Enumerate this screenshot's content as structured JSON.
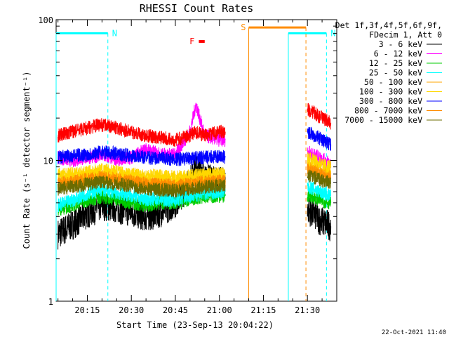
{
  "chart_data": {
    "type": "line",
    "title": "RHESSI Count Rates",
    "xlabel": "Start Time (23-Sep-13 20:04:22)",
    "ylabel": "Count Rate (s⁻¹ detector segment⁻¹)",
    "y_scale": "log",
    "ylim": [
      1,
      100
    ],
    "y_ticks": [
      "1",
      "10",
      "100"
    ],
    "xlim": [
      "20:04:22",
      "21:40:00"
    ],
    "x_ticks": [
      "20:15",
      "20:30",
      "20:45",
      "21:00",
      "21:15",
      "21:30"
    ],
    "footer": "22-Oct-2021 11:40",
    "legend": {
      "header": [
        "Det 1f,3f,4f,5f,6f,9f,",
        "FDecim 1, Att 0"
      ],
      "placement": "right"
    },
    "series": [
      {
        "name": "3 - 6 keV",
        "color": "#000000",
        "x": [
          "20:05",
          "20:10",
          "20:15",
          "20:20",
          "20:25",
          "20:30",
          "20:35",
          "20:40",
          "20:45",
          "20:50",
          "20:52",
          "20:55",
          "21:00",
          "21:02",
          "21:30",
          "21:32",
          "21:34",
          "21:36",
          "21:38"
        ],
        "y": [
          3.0,
          3.5,
          4.2,
          4.8,
          4.6,
          4.3,
          4.0,
          4.3,
          5.0,
          7.0,
          9.0,
          7.5,
          7.0,
          7.0,
          4.5,
          4.2,
          3.8,
          3.6,
          3.4
        ]
      },
      {
        "name": "6 - 12 keV",
        "color": "#ff00ff",
        "x": [
          "20:05",
          "20:10",
          "20:15",
          "20:20",
          "20:25",
          "20:30",
          "20:35",
          "20:40",
          "20:45",
          "20:50",
          "20:52",
          "20:55",
          "21:00",
          "21:02",
          "21:30",
          "21:32",
          "21:34",
          "21:36",
          "21:38"
        ],
        "y": [
          10.5,
          10.0,
          10.5,
          10.8,
          10.2,
          10.5,
          12.0,
          11.0,
          11.0,
          16.0,
          25.0,
          15.0,
          14.0,
          14.0,
          11.5,
          11.0,
          10.5,
          10.0,
          9.5
        ]
      },
      {
        "name": "12 - 25 keV",
        "color": "#00cc00",
        "x": [
          "20:05",
          "20:10",
          "20:15",
          "20:20",
          "20:25",
          "20:30",
          "20:35",
          "20:40",
          "20:45",
          "20:50",
          "20:52",
          "20:55",
          "21:00",
          "21:02",
          "21:30",
          "21:32",
          "21:34",
          "21:36",
          "21:38"
        ],
        "y": [
          4.5,
          4.8,
          5.2,
          5.5,
          5.3,
          5.0,
          4.8,
          5.0,
          5.0,
          5.3,
          5.4,
          5.5,
          5.6,
          5.6,
          5.6,
          5.5,
          5.3,
          5.1,
          5.0
        ]
      },
      {
        "name": "25 - 50 keV",
        "color": "#00ffff",
        "x": [
          "20:05",
          "20:10",
          "20:15",
          "20:20",
          "20:25",
          "20:30",
          "20:35",
          "20:40",
          "20:45",
          "20:50",
          "20:52",
          "20:55",
          "21:00",
          "21:02",
          "21:30",
          "21:32",
          "21:34",
          "21:36",
          "21:38"
        ],
        "y": [
          4.8,
          5.2,
          5.8,
          6.2,
          5.9,
          5.6,
          5.3,
          5.3,
          5.2,
          5.6,
          5.7,
          5.8,
          6.0,
          6.0,
          6.5,
          6.3,
          6.0,
          5.8,
          5.6
        ]
      },
      {
        "name": "50 - 100 keV",
        "color": "#ffa500",
        "x": [
          "20:05",
          "20:10",
          "20:15",
          "20:20",
          "20:25",
          "20:30",
          "20:35",
          "20:40",
          "20:45",
          "20:50",
          "20:52",
          "20:55",
          "21:00",
          "21:02",
          "21:30",
          "21:32",
          "21:34",
          "21:36",
          "21:38"
        ],
        "y": [
          7.0,
          7.2,
          7.5,
          7.8,
          7.5,
          7.3,
          7.0,
          6.9,
          6.8,
          7.0,
          7.1,
          7.2,
          7.3,
          7.3,
          9.2,
          8.9,
          8.6,
          8.3,
          8.0
        ]
      },
      {
        "name": "100 - 300 keV",
        "color": "#ffd700",
        "x": [
          "20:05",
          "20:10",
          "20:15",
          "20:20",
          "20:25",
          "20:30",
          "20:35",
          "20:40",
          "20:45",
          "20:50",
          "20:52",
          "20:55",
          "21:00",
          "21:02",
          "21:30",
          "21:32",
          "21:34",
          "21:36",
          "21:38"
        ],
        "y": [
          8.0,
          8.0,
          8.2,
          8.5,
          8.3,
          8.0,
          7.8,
          7.7,
          7.6,
          7.7,
          7.8,
          7.9,
          8.0,
          8.0,
          10.3,
          10.0,
          9.6,
          9.2,
          8.9
        ]
      },
      {
        "name": "300 - 800 keV",
        "color": "#0000ff",
        "x": [
          "20:05",
          "20:10",
          "20:15",
          "20:20",
          "20:25",
          "20:30",
          "20:35",
          "20:40",
          "20:45",
          "20:50",
          "20:52",
          "20:55",
          "21:00",
          "21:02",
          "21:30",
          "21:32",
          "21:34",
          "21:36",
          "21:38"
        ],
        "y": [
          10.5,
          10.8,
          11.0,
          11.5,
          11.2,
          10.8,
          10.5,
          10.3,
          10.2,
          10.3,
          10.4,
          10.5,
          10.6,
          10.6,
          16.0,
          15.2,
          14.4,
          13.6,
          13.0
        ]
      },
      {
        "name": "800 - 7000 keV",
        "color": "#ff8c00",
        "x": [
          "20:05",
          "20:10",
          "20:15",
          "20:20",
          "20:25",
          "20:30",
          "20:35",
          "20:40",
          "20:45",
          "20:50",
          "20:52",
          "20:55",
          "21:00",
          "21:02",
          "21:30",
          "21:32",
          "21:34",
          "21:36",
          "21:38"
        ],
        "y": [
          6.8,
          7.0,
          7.3,
          7.6,
          7.3,
          7.1,
          6.8,
          6.7,
          6.6,
          6.8,
          6.9,
          7.0,
          7.1,
          7.1,
          8.6,
          8.3,
          8.0,
          7.7,
          7.4
        ]
      },
      {
        "name": "7000 - 15000 keV",
        "color": "#6b6b00",
        "x": [
          "20:05",
          "20:10",
          "20:15",
          "20:20",
          "20:25",
          "20:30",
          "20:35",
          "20:40",
          "20:45",
          "20:50",
          "20:52",
          "20:55",
          "21:00",
          "21:02",
          "21:30",
          "21:32",
          "21:34",
          "21:36",
          "21:38"
        ],
        "y": [
          6.3,
          6.5,
          6.8,
          7.0,
          6.8,
          6.6,
          6.3,
          6.2,
          6.1,
          6.3,
          6.4,
          6.5,
          6.6,
          6.6,
          7.8,
          7.6,
          7.3,
          7.1,
          6.9
        ]
      },
      {
        "name": "",
        "color": "#ff0000",
        "x": [
          "20:05",
          "20:10",
          "20:15",
          "20:20",
          "20:25",
          "20:30",
          "20:35",
          "20:40",
          "20:45",
          "20:50",
          "20:52",
          "20:55",
          "21:00",
          "21:02",
          "21:30",
          "21:32",
          "21:34",
          "21:36",
          "21:38"
        ],
        "y": [
          15.0,
          16.0,
          17.0,
          18.0,
          17.0,
          16.0,
          15.0,
          14.5,
          14.0,
          15.0,
          16.0,
          15.0,
          16.0,
          16.0,
          23.0,
          22.0,
          20.5,
          19.5,
          18.5
        ]
      }
    ],
    "annotations": [
      {
        "label": "N",
        "color": "#00ffff",
        "y": 80,
        "x_start": "20:04:22",
        "x_end": "20:22:00",
        "solid_line_x": "20:04:22",
        "dashed_line_x": "20:22:00"
      },
      {
        "label": "N",
        "color": "#00ffff",
        "y": 80,
        "x_start": "21:23:30",
        "x_end": "21:36:30",
        "solid_line_x": "21:23:30",
        "dashed_line_x": "21:36:30"
      },
      {
        "label": "S",
        "color": "#ff8c00",
        "y": 88,
        "x_start": "21:10:00",
        "x_end": "21:29:30",
        "solid_line_x": "21:10:00",
        "dashed_line_x": "21:29:30"
      },
      {
        "label": "F",
        "color": "#ff0000",
        "y": 70,
        "x_start": "20:53:00",
        "x_end": "20:55:00"
      }
    ]
  }
}
